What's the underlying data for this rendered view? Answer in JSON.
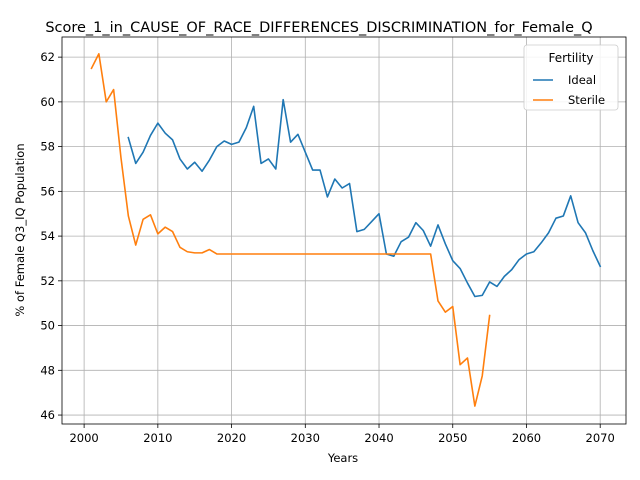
{
  "chart_data": {
    "type": "line",
    "title": "Score_1_in_CAUSE_OF_RACE_DIFFERENCES_DISCRIMINATION_for_Female_Q",
    "xlabel": "Years",
    "ylabel": "% of Female Q3_IQ Population",
    "xlim": [
      1997,
      2073.5
    ],
    "ylim": [
      45.6,
      62.9
    ],
    "xticks": [
      2000,
      2010,
      2020,
      2030,
      2040,
      2050,
      2060,
      2070
    ],
    "yticks": [
      46,
      48,
      50,
      52,
      54,
      56,
      58,
      60,
      62
    ],
    "grid": true,
    "legend": {
      "title": "Fertility",
      "position": "top-right"
    },
    "series": [
      {
        "name": "Ideal",
        "color": "#1f77b4",
        "points": [
          [
            2006,
            58.4
          ],
          [
            2007,
            57.25
          ],
          [
            2008,
            57.75
          ],
          [
            2009,
            58.5
          ],
          [
            2010,
            59.05
          ],
          [
            2011,
            58.6
          ],
          [
            2012,
            58.3
          ],
          [
            2013,
            57.45
          ],
          [
            2014,
            57.0
          ],
          [
            2015,
            57.3
          ],
          [
            2016,
            56.9
          ],
          [
            2017,
            57.4
          ],
          [
            2018,
            58.0
          ],
          [
            2019,
            58.25
          ],
          [
            2020,
            58.1
          ],
          [
            2021,
            58.2
          ],
          [
            2022,
            58.85
          ],
          [
            2023,
            59.8
          ],
          [
            2024,
            57.25
          ],
          [
            2025,
            57.45
          ],
          [
            2026,
            57.0
          ],
          [
            2027,
            60.1
          ],
          [
            2028,
            58.2
          ],
          [
            2029,
            58.55
          ],
          [
            2030,
            57.75
          ],
          [
            2031,
            56.95
          ],
          [
            2032,
            56.95
          ],
          [
            2033,
            55.75
          ],
          [
            2034,
            56.55
          ],
          [
            2035,
            56.15
          ],
          [
            2036,
            56.35
          ],
          [
            2037,
            54.2
          ],
          [
            2038,
            54.3
          ],
          [
            2039,
            54.65
          ],
          [
            2040,
            55.0
          ],
          [
            2041,
            53.2
          ],
          [
            2042,
            53.1
          ],
          [
            2043,
            53.75
          ],
          [
            2044,
            53.95
          ],
          [
            2045,
            54.6
          ],
          [
            2046,
            54.25
          ],
          [
            2047,
            53.55
          ],
          [
            2048,
            54.5
          ],
          [
            2049,
            53.65
          ],
          [
            2050,
            52.9
          ],
          [
            2051,
            52.55
          ],
          [
            2052,
            51.9
          ],
          [
            2053,
            51.3
          ],
          [
            2054,
            51.35
          ],
          [
            2055,
            51.95
          ],
          [
            2056,
            51.75
          ],
          [
            2057,
            52.2
          ],
          [
            2058,
            52.5
          ],
          [
            2059,
            52.95
          ],
          [
            2060,
            53.2
          ],
          [
            2061,
            53.3
          ],
          [
            2062,
            53.7
          ],
          [
            2063,
            54.15
          ],
          [
            2064,
            54.8
          ],
          [
            2065,
            54.9
          ],
          [
            2066,
            55.8
          ],
          [
            2067,
            54.6
          ],
          [
            2068,
            54.15
          ],
          [
            2069,
            53.35
          ],
          [
            2070,
            52.65
          ]
        ]
      },
      {
        "name": "Sterile",
        "color": "#ff7f0e",
        "points": [
          [
            2001,
            61.5
          ],
          [
            2002,
            62.15
          ],
          [
            2003,
            60.0
          ],
          [
            2004,
            60.55
          ],
          [
            2005,
            57.5
          ],
          [
            2006,
            54.9
          ],
          [
            2007,
            53.6
          ],
          [
            2008,
            54.75
          ],
          [
            2009,
            54.95
          ],
          [
            2010,
            54.1
          ],
          [
            2011,
            54.4
          ],
          [
            2012,
            54.2
          ],
          [
            2013,
            53.5
          ],
          [
            2014,
            53.3
          ],
          [
            2015,
            53.25
          ],
          [
            2016,
            53.25
          ],
          [
            2017,
            53.4
          ],
          [
            2018,
            53.2
          ],
          [
            2019,
            53.2
          ],
          [
            2020,
            53.2
          ],
          [
            2030,
            53.2
          ],
          [
            2040,
            53.2
          ],
          [
            2047,
            53.2
          ],
          [
            2048,
            51.1
          ],
          [
            2049,
            50.6
          ],
          [
            2050,
            50.85
          ],
          [
            2051,
            48.25
          ],
          [
            2052,
            48.55
          ],
          [
            2053,
            46.4
          ],
          [
            2054,
            47.75
          ],
          [
            2055,
            50.45
          ]
        ]
      }
    ]
  }
}
